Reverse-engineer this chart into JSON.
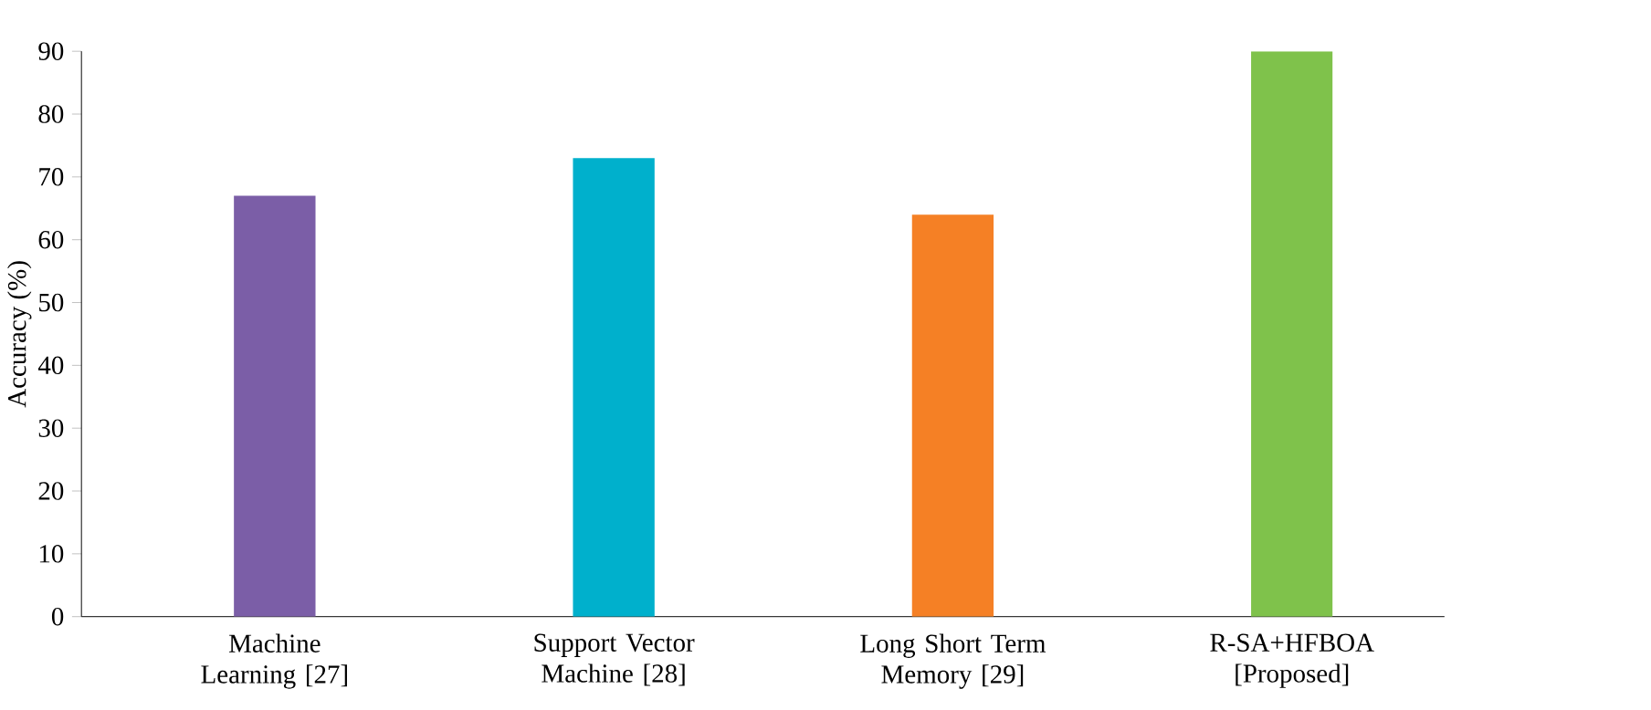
{
  "chart_data": {
    "type": "bar",
    "ylabel": "Accuracy (%)",
    "categories": [
      "Machine Learning [27]",
      "Support Vector Machine [28]",
      "Long Short Term Memory [29]",
      "R-SA+HFBOA [Proposed]"
    ],
    "values": [
      67,
      73,
      64,
      90
    ],
    "colors": [
      "#7b5ea7",
      "#00b0cc",
      "#f58025",
      "#7fc24b"
    ],
    "ylim": [
      0,
      90
    ],
    "yticks": [
      0,
      10,
      20,
      30,
      40,
      50,
      60,
      70,
      80,
      90
    ]
  }
}
